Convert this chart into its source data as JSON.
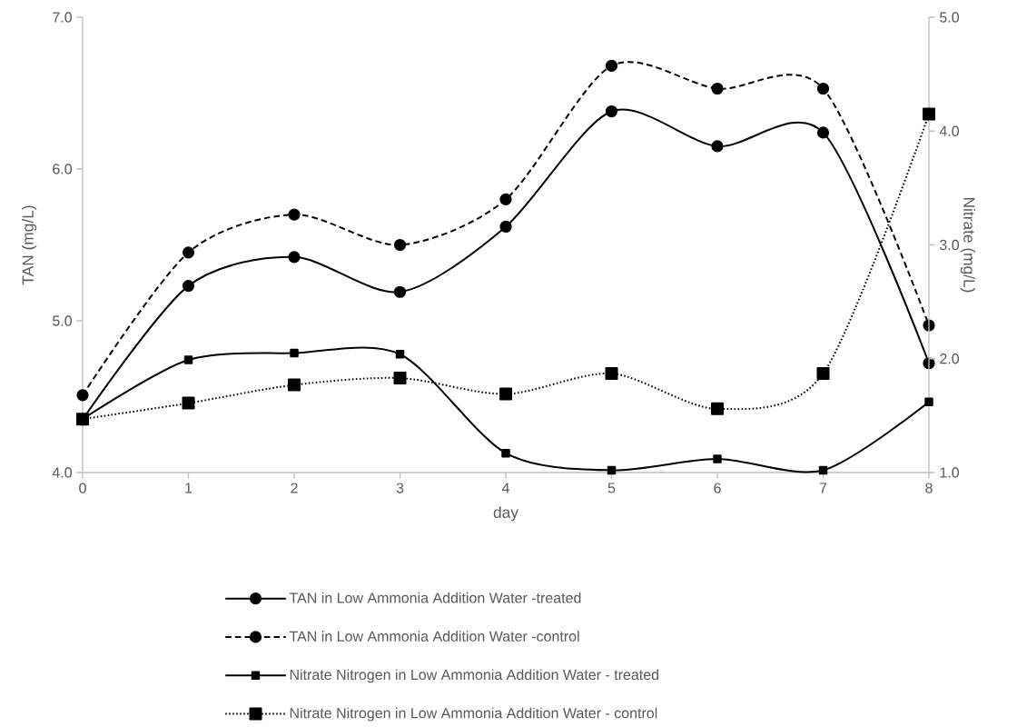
{
  "chart_data": {
    "type": "line",
    "xlabel": "day",
    "ylabel": "TAN (mg/L)",
    "y2label": "Nitrate (mg/L)",
    "x": [
      0,
      1,
      2,
      3,
      4,
      5,
      6,
      7,
      8
    ],
    "xlim": [
      0,
      8
    ],
    "xticks": [
      0,
      1,
      2,
      3,
      4,
      5,
      6,
      7,
      8
    ],
    "ylim": [
      4,
      7
    ],
    "yticks": [
      {
        "value": 4,
        "label": "4.0"
      },
      {
        "value": 5,
        "label": "5.0"
      },
      {
        "value": 6,
        "label": "6.0"
      },
      {
        "value": 7,
        "label": "7.0"
      }
    ],
    "y2lim": [
      1,
      5
    ],
    "y2ticks": [
      {
        "value": 1,
        "label": "1.0"
      },
      {
        "value": 2,
        "label": "2.0"
      },
      {
        "value": 3,
        "label": "3.0"
      },
      {
        "value": 4,
        "label": "4.0"
      },
      {
        "value": 5,
        "label": "5.0"
      }
    ],
    "grid": false,
    "legend": "bottom",
    "series": [
      {
        "name": "TAN in Low Ammonia Addition Water -treated",
        "color": "#000000",
        "line_style": "solid",
        "marker": "circle",
        "values": [
          4.35,
          5.23,
          5.42,
          5.19,
          5.62,
          6.38,
          6.15,
          6.24,
          4.72
        ]
      },
      {
        "name": "TAN in Low Ammonia Addition Water -control",
        "color": "#000000",
        "line_style": "dashed",
        "marker": "circle",
        "values": [
          4.51,
          5.45,
          5.7,
          5.5,
          5.8,
          6.68,
          6.53,
          6.53,
          4.97
        ]
      },
      {
        "name": "Nitrate Nitrogen in Low Ammonia Addition Water - treated",
        "color": "#000000",
        "line_style": "solid",
        "marker": "square",
        "axis": "y2",
        "values": [
          1.47,
          1.99,
          2.05,
          2.04,
          1.17,
          1.02,
          1.12,
          1.02,
          1.62
        ]
      },
      {
        "name": "Nitrate Nitrogen in Low Ammonia Addition Water - control",
        "color": "#000000",
        "line_style": "dotted",
        "marker": "square",
        "axis": "y2",
        "values": [
          1.47,
          1.61,
          1.77,
          1.83,
          1.69,
          1.87,
          1.56,
          1.87,
          4.15
        ]
      }
    ]
  }
}
